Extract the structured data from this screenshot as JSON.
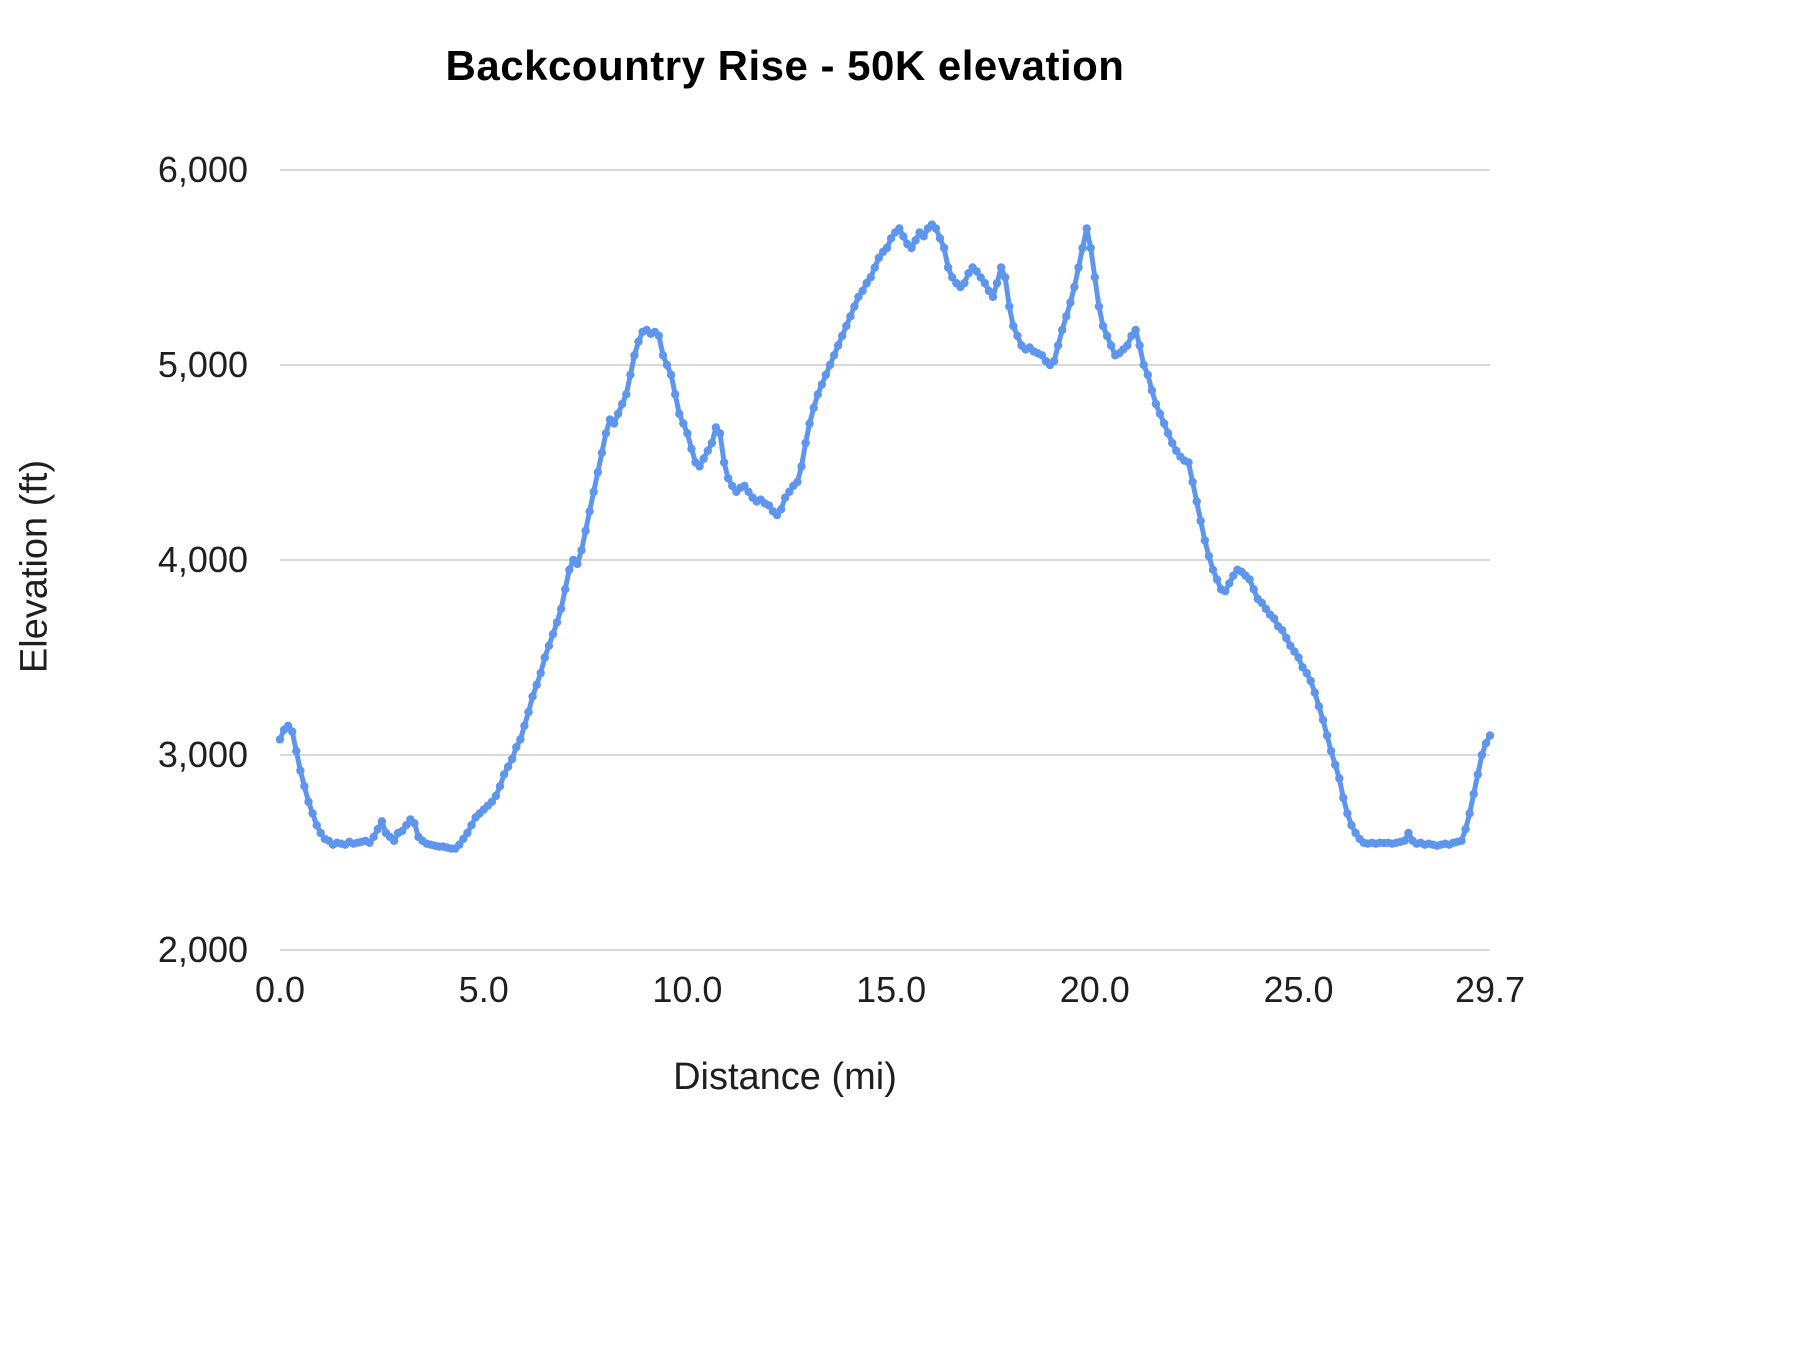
{
  "title": "Backcountry Rise - 50K elevation",
  "xlabel": "Distance (mi)",
  "ylabel": "Elevation (ft)",
  "colors": {
    "line": "#5e96ee",
    "grid": "#d9d9d9",
    "text": "#1f1f1f",
    "background": "#ffffff"
  },
  "chart_data": {
    "type": "line",
    "title": "Backcountry Rise - 50K elevation",
    "xlabel": "Distance (mi)",
    "ylabel": "Elevation (ft)",
    "xlim": [
      0,
      29.7
    ],
    "ylim": [
      2000,
      6000
    ],
    "grid": "horizontal-only",
    "legend": "none",
    "xticks": [
      0.0,
      5.0,
      10.0,
      15.0,
      20.0,
      25.0,
      29.7
    ],
    "xtick_labels": [
      "0.0",
      "5.0",
      "10.0",
      "15.0",
      "20.0",
      "25.0",
      "29.7"
    ],
    "yticks": [
      2000,
      3000,
      4000,
      5000,
      6000
    ],
    "ytick_labels": [
      "2,000",
      "3,000",
      "4,000",
      "5,000",
      "6,000"
    ],
    "x_start": 0.0,
    "x_step": 0.1,
    "values": [
      3080,
      3130,
      3150,
      3120,
      3020,
      2920,
      2840,
      2760,
      2700,
      2640,
      2600,
      2570,
      2560,
      2540,
      2550,
      2545,
      2540,
      2555,
      2545,
      2550,
      2555,
      2560,
      2550,
      2580,
      2620,
      2660,
      2600,
      2580,
      2560,
      2600,
      2610,
      2640,
      2670,
      2650,
      2580,
      2560,
      2545,
      2540,
      2535,
      2530,
      2530,
      2525,
      2520,
      2520,
      2540,
      2570,
      2600,
      2640,
      2680,
      2700,
      2720,
      2740,
      2760,
      2790,
      2840,
      2900,
      2940,
      2980,
      3040,
      3080,
      3150,
      3220,
      3300,
      3360,
      3420,
      3500,
      3560,
      3620,
      3680,
      3750,
      3850,
      3950,
      4000,
      3980,
      4050,
      4150,
      4250,
      4350,
      4450,
      4550,
      4650,
      4720,
      4700,
      4750,
      4800,
      4850,
      4950,
      5050,
      5120,
      5170,
      5180,
      5160,
      5170,
      5150,
      5050,
      5000,
      4950,
      4850,
      4750,
      4700,
      4650,
      4570,
      4500,
      4480,
      4520,
      4560,
      4600,
      4680,
      4650,
      4500,
      4420,
      4380,
      4350,
      4370,
      4380,
      4350,
      4320,
      4300,
      4310,
      4290,
      4280,
      4250,
      4230,
      4260,
      4320,
      4350,
      4380,
      4400,
      4480,
      4600,
      4700,
      4780,
      4850,
      4900,
      4950,
      5000,
      5050,
      5100,
      5150,
      5200,
      5250,
      5300,
      5350,
      5380,
      5420,
      5450,
      5500,
      5550,
      5580,
      5600,
      5650,
      5680,
      5700,
      5660,
      5620,
      5600,
      5640,
      5680,
      5660,
      5700,
      5720,
      5700,
      5650,
      5600,
      5500,
      5450,
      5420,
      5400,
      5420,
      5470,
      5500,
      5480,
      5450,
      5420,
      5380,
      5350,
      5420,
      5500,
      5450,
      5300,
      5200,
      5150,
      5100,
      5080,
      5090,
      5070,
      5060,
      5050,
      5020,
      5000,
      5020,
      5100,
      5180,
      5250,
      5320,
      5400,
      5500,
      5600,
      5700,
      5600,
      5450,
      5300,
      5200,
      5150,
      5100,
      5050,
      5060,
      5080,
      5100,
      5150,
      5180,
      5100,
      5000,
      4950,
      4870,
      4800,
      4750,
      4700,
      4650,
      4600,
      4560,
      4530,
      4510,
      4500,
      4400,
      4300,
      4200,
      4100,
      4020,
      3950,
      3900,
      3850,
      3840,
      3880,
      3920,
      3950,
      3940,
      3920,
      3900,
      3850,
      3800,
      3780,
      3750,
      3720,
      3700,
      3660,
      3640,
      3600,
      3560,
      3530,
      3500,
      3450,
      3420,
      3380,
      3320,
      3250,
      3180,
      3100,
      3020,
      2950,
      2880,
      2780,
      2700,
      2640,
      2600,
      2570,
      2550,
      2545,
      2550,
      2545,
      2550,
      2548,
      2550,
      2545,
      2550,
      2555,
      2560,
      2600,
      2560,
      2545,
      2550,
      2540,
      2545,
      2540,
      2535,
      2540,
      2545,
      2540,
      2550,
      2555,
      2560,
      2620,
      2700,
      2800,
      2900,
      3000,
      3060,
      3100
    ]
  }
}
